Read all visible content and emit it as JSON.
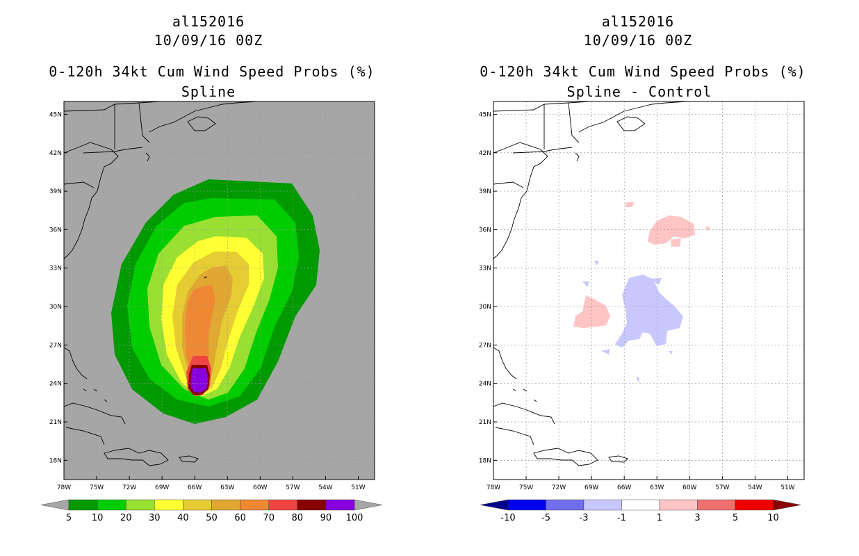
{
  "left_panel": {
    "title_lines": [
      "al152016",
      "10/09/16 00Z",
      "0-120h 34kt Cum Wind Speed Probs (%)",
      "Spline"
    ],
    "colorbar": {
      "labels": [
        "5",
        "10",
        "20",
        "30",
        "40",
        "50",
        "60",
        "70",
        "80",
        "90",
        "100"
      ],
      "colors": [
        "#009900",
        "#00cc00",
        "#99e033",
        "#ffff33",
        "#e6cc33",
        "#e0a833",
        "#ee8833",
        "#f04444",
        "#880000",
        "#8800dd"
      ],
      "under_color": "#a6a6a6",
      "over_color": "#a6a6a6"
    },
    "background_color": "#a6a6a6"
  },
  "right_panel": {
    "title_lines": [
      "al152016",
      "10/09/16 00Z",
      "0-120h 34kt Cum Wind Speed Probs (%)",
      "Spline - Control"
    ],
    "colorbar": {
      "labels": [
        "-10",
        "-5",
        "-3",
        "-1",
        "1",
        "3",
        "5",
        "10"
      ],
      "colors": [
        "#0000ee",
        "#7070ee",
        "#c8c8ff",
        "#ffffff",
        "#ffc4c4",
        "#f07070",
        "#ee0000"
      ],
      "under_color": "#000088",
      "over_color": "#880000"
    },
    "background_color": "#ffffff"
  },
  "map_axes": {
    "lat_labels": [
      "45N",
      "42N",
      "39N",
      "36N",
      "33N",
      "30N",
      "27N",
      "24N",
      "21N",
      "18N"
    ],
    "lon_labels": [
      "78W",
      "75W",
      "72W",
      "69W",
      "66W",
      "63W",
      "60W",
      "57W",
      "54W",
      "51W"
    ]
  },
  "chart_data": {
    "type": "heatmap",
    "storm_id": "al152016",
    "valid_time": "10/09/16 00Z",
    "variable": "0-120h 34kt Cum Wind Speed Probs (%)",
    "xlim_deg": [
      -78,
      -49.5
    ],
    "ylim_deg": [
      16.5,
      46
    ],
    "left_levels_pct": [
      5,
      10,
      20,
      30,
      40,
      50,
      60,
      70,
      80,
      90,
      100
    ],
    "right_levels_pct": [
      -10,
      -5,
      -3,
      -1,
      1,
      3,
      5,
      10
    ],
    "max_probability_center": {
      "lon": -65.8,
      "lat": 24.2
    }
  }
}
